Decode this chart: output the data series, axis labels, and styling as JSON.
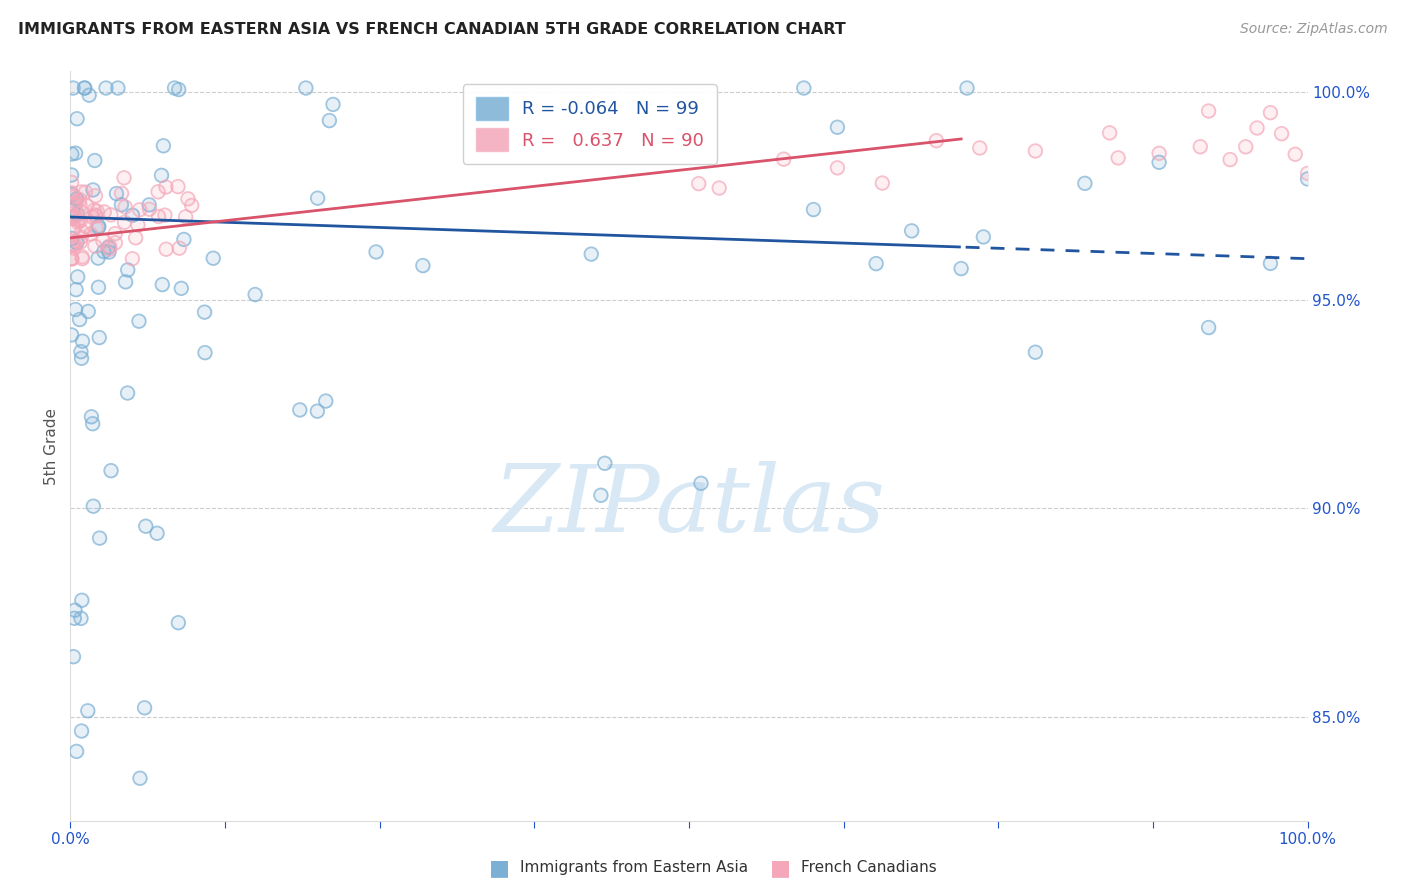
{
  "title": "IMMIGRANTS FROM EASTERN ASIA VS FRENCH CANADIAN 5TH GRADE CORRELATION CHART",
  "source": "Source: ZipAtlas.com",
  "ylabel": "5th Grade",
  "R_blue": -0.064,
  "N_blue": 99,
  "R_pink": 0.637,
  "N_pink": 90,
  "blue_color": "#7BAFD4",
  "pink_color": "#F4A7B9",
  "blue_line_color": "#2255A0",
  "pink_line_color": "#D9536A",
  "legend_blue_label": "Immigrants from Eastern Asia",
  "legend_pink_label": "French Canadians",
  "xlim": [
    0,
    1.0
  ],
  "ylim": [
    0.825,
    1.005
  ],
  "yticks": [
    0.85,
    0.9,
    0.95,
    1.0
  ],
  "ytick_labels": [
    "85.0%",
    "90.0%",
    "95.0%",
    "100.0%"
  ],
  "grid_color": "#CCCCCC",
  "watermark_text": "ZIPatlas",
  "watermark_color": "#D8E8F5"
}
